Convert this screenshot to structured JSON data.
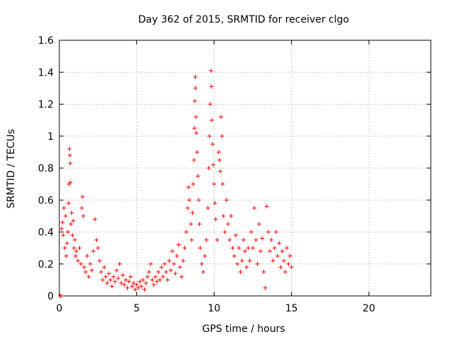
{
  "chart_data": {
    "type": "scatter",
    "title": "Day 362 of 2015, SRMTID for receiver clgo",
    "xlabel": "GPS time / hours",
    "ylabel": "SRMTID / TECUs",
    "xlim": [
      0,
      24
    ],
    "ylim": [
      0,
      1.6
    ],
    "xticks": [
      0,
      5,
      10,
      15,
      20
    ],
    "xtick_labels": [
      "0",
      "5",
      "10",
      "15",
      "20"
    ],
    "yticks": [
      0,
      0.2,
      0.4,
      0.6,
      0.8,
      1.0,
      1.2,
      1.4,
      1.6
    ],
    "ytick_labels": [
      "0",
      "0.2",
      "0.4",
      "0.6",
      "0.8",
      "1",
      "1.2",
      "1.4",
      "1.6"
    ],
    "grid": true,
    "marker": "+",
    "color": "#ff0000",
    "series": [
      {
        "name": "SRMTID",
        "points": [
          [
            0.05,
            0.0
          ],
          [
            0.1,
            0.0
          ],
          [
            0.15,
            0.42
          ],
          [
            0.2,
            0.46
          ],
          [
            0.25,
            0.38
          ],
          [
            0.3,
            0.55
          ],
          [
            0.35,
            0.3
          ],
          [
            0.4,
            0.5
          ],
          [
            0.45,
            0.25
          ],
          [
            0.5,
            0.33
          ],
          [
            0.55,
            0.4
          ],
          [
            0.6,
            0.58
          ],
          [
            0.62,
            0.7
          ],
          [
            0.65,
            0.92
          ],
          [
            0.68,
            0.88
          ],
          [
            0.7,
            0.83
          ],
          [
            0.72,
            0.71
          ],
          [
            0.75,
            0.45
          ],
          [
            0.8,
            0.52
          ],
          [
            0.85,
            0.38
          ],
          [
            0.9,
            0.47
          ],
          [
            0.95,
            0.3
          ],
          [
            1.0,
            0.35
          ],
          [
            1.05,
            0.25
          ],
          [
            1.1,
            0.28
          ],
          [
            1.2,
            0.22
          ],
          [
            1.3,
            0.3
          ],
          [
            1.4,
            0.2
          ],
          [
            1.45,
            0.55
          ],
          [
            1.5,
            0.62
          ],
          [
            1.55,
            0.5
          ],
          [
            1.6,
            0.18
          ],
          [
            1.7,
            0.15
          ],
          [
            1.8,
            0.25
          ],
          [
            1.9,
            0.12
          ],
          [
            2.0,
            0.2
          ],
          [
            2.1,
            0.16
          ],
          [
            2.2,
            0.28
          ],
          [
            2.3,
            0.48
          ],
          [
            2.4,
            0.35
          ],
          [
            2.5,
            0.3
          ],
          [
            2.6,
            0.22
          ],
          [
            2.7,
            0.15
          ],
          [
            2.8,
            0.1
          ],
          [
            2.9,
            0.18
          ],
          [
            3.0,
            0.12
          ],
          [
            3.1,
            0.08
          ],
          [
            3.2,
            0.14
          ],
          [
            3.3,
            0.1
          ],
          [
            3.4,
            0.06
          ],
          [
            3.5,
            0.12
          ],
          [
            3.6,
            0.09
          ],
          [
            3.7,
            0.16
          ],
          [
            3.8,
            0.11
          ],
          [
            3.9,
            0.2
          ],
          [
            4.0,
            0.08
          ],
          [
            4.1,
            0.13
          ],
          [
            4.2,
            0.07
          ],
          [
            4.3,
            0.1
          ],
          [
            4.4,
            0.05
          ],
          [
            4.5,
            0.09
          ],
          [
            4.6,
            0.12
          ],
          [
            4.7,
            0.06
          ],
          [
            4.8,
            0.08
          ],
          [
            4.9,
            0.04
          ],
          [
            5.0,
            0.07
          ],
          [
            5.1,
            0.05
          ],
          [
            5.2,
            0.09
          ],
          [
            5.3,
            0.06
          ],
          [
            5.4,
            0.1
          ],
          [
            5.5,
            0.04
          ],
          [
            5.6,
            0.08
          ],
          [
            5.7,
            0.12
          ],
          [
            5.8,
            0.15
          ],
          [
            5.9,
            0.2
          ],
          [
            6.0,
            0.1
          ],
          [
            6.1,
            0.07
          ],
          [
            6.2,
            0.12
          ],
          [
            6.3,
            0.09
          ],
          [
            6.4,
            0.15
          ],
          [
            6.5,
            0.1
          ],
          [
            6.6,
            0.18
          ],
          [
            6.7,
            0.12
          ],
          [
            6.8,
            0.2
          ],
          [
            6.9,
            0.15
          ],
          [
            7.0,
            0.1
          ],
          [
            7.1,
            0.22
          ],
          [
            7.2,
            0.16
          ],
          [
            7.3,
            0.28
          ],
          [
            7.4,
            0.2
          ],
          [
            7.5,
            0.14
          ],
          [
            7.6,
            0.25
          ],
          [
            7.7,
            0.32
          ],
          [
            7.8,
            0.18
          ],
          [
            7.9,
            0.12
          ],
          [
            8.0,
            0.22
          ],
          [
            8.1,
            0.3
          ],
          [
            8.2,
            0.4
          ],
          [
            8.3,
            0.55
          ],
          [
            8.35,
            0.68
          ],
          [
            8.4,
            0.6
          ],
          [
            8.5,
            0.45
          ],
          [
            8.55,
            0.35
          ],
          [
            8.6,
            0.52
          ],
          [
            8.65,
            0.7
          ],
          [
            8.7,
            0.85
          ],
          [
            8.72,
            1.05
          ],
          [
            8.75,
            1.22
          ],
          [
            8.78,
            1.37
          ],
          [
            8.8,
            1.3
          ],
          [
            8.82,
            1.12
          ],
          [
            8.85,
            1.02
          ],
          [
            8.9,
            0.9
          ],
          [
            8.95,
            0.75
          ],
          [
            9.0,
            0.6
          ],
          [
            9.05,
            0.45
          ],
          [
            9.1,
            0.3
          ],
          [
            9.2,
            0.2
          ],
          [
            9.3,
            0.15
          ],
          [
            9.4,
            0.25
          ],
          [
            9.5,
            0.35
          ],
          [
            9.6,
            0.55
          ],
          [
            9.65,
            0.8
          ],
          [
            9.7,
            1.0
          ],
          [
            9.75,
            1.2
          ],
          [
            9.8,
            1.41
          ],
          [
            9.82,
            1.31
          ],
          [
            9.85,
            1.1
          ],
          [
            9.9,
            0.95
          ],
          [
            9.95,
            0.82
          ],
          [
            10.0,
            0.7
          ],
          [
            10.05,
            0.58
          ],
          [
            10.1,
            0.48
          ],
          [
            10.2,
            0.35
          ],
          [
            10.3,
            0.9
          ],
          [
            10.35,
            0.85
          ],
          [
            10.4,
            0.78
          ],
          [
            10.45,
            1.12
          ],
          [
            10.5,
            1.0
          ],
          [
            10.55,
            0.7
          ],
          [
            10.6,
            0.5
          ],
          [
            10.7,
            0.4
          ],
          [
            10.8,
            0.6
          ],
          [
            10.9,
            0.45
          ],
          [
            11.0,
            0.35
          ],
          [
            11.1,
            0.5
          ],
          [
            11.2,
            0.3
          ],
          [
            11.3,
            0.25
          ],
          [
            11.4,
            0.38
          ],
          [
            11.5,
            0.2
          ],
          [
            11.6,
            0.3
          ],
          [
            11.7,
            0.15
          ],
          [
            11.8,
            0.22
          ],
          [
            11.9,
            0.35
          ],
          [
            12.0,
            0.28
          ],
          [
            12.1,
            0.18
          ],
          [
            12.2,
            0.3
          ],
          [
            12.3,
            0.22
          ],
          [
            12.4,
            0.4
          ],
          [
            12.5,
            0.3
          ],
          [
            12.6,
            0.55
          ],
          [
            12.7,
            0.35
          ],
          [
            12.8,
            0.2
          ],
          [
            12.9,
            0.45
          ],
          [
            13.0,
            0.28
          ],
          [
            13.1,
            0.36
          ],
          [
            13.2,
            0.15
          ],
          [
            13.3,
            0.05
          ],
          [
            13.4,
            0.56
          ],
          [
            13.5,
            0.4
          ],
          [
            13.6,
            0.28
          ],
          [
            13.7,
            0.35
          ],
          [
            13.8,
            0.22
          ],
          [
            13.9,
            0.3
          ],
          [
            14.0,
            0.4
          ],
          [
            14.1,
            0.25
          ],
          [
            14.2,
            0.33
          ],
          [
            14.3,
            0.18
          ],
          [
            14.4,
            0.28
          ],
          [
            14.5,
            0.22
          ],
          [
            14.6,
            0.15
          ],
          [
            14.7,
            0.3
          ],
          [
            14.8,
            0.2
          ],
          [
            14.9,
            0.25
          ],
          [
            15.0,
            0.18
          ]
        ]
      }
    ]
  }
}
